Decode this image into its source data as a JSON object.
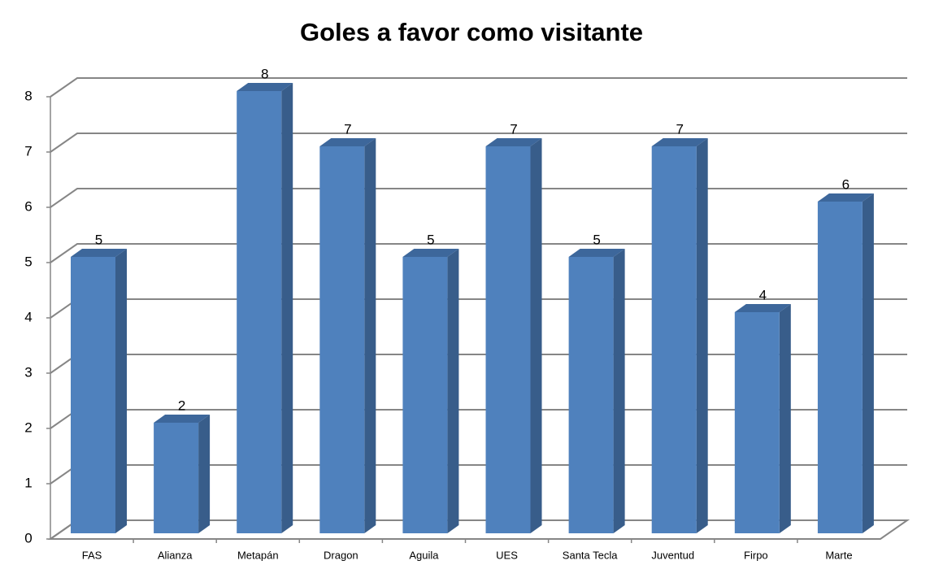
{
  "chart_data": {
    "type": "bar",
    "title": "Goles a favor como visitante",
    "categories": [
      "FAS",
      "Alianza",
      "Metapán",
      "Dragon",
      "Aguila",
      "UES",
      "Santa Tecla",
      "Juventud",
      "Firpo",
      "Marte"
    ],
    "values": [
      5,
      2,
      8,
      7,
      5,
      7,
      5,
      7,
      4,
      6
    ],
    "color": "#4f81bd",
    "ylim": [
      0,
      8
    ],
    "yticks": [
      0,
      1,
      2,
      3,
      4,
      5,
      6,
      7,
      8
    ],
    "grid": true
  }
}
